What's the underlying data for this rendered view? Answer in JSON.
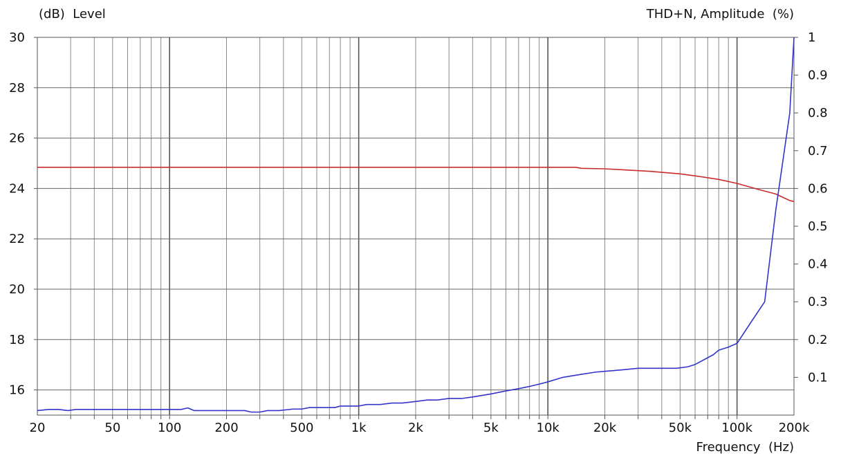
{
  "chart_data": {
    "type": "line",
    "left_axis_label": "(dB)  Level",
    "right_axis_label": "THD+N, Amplitude  (%)",
    "xlabel": "Frequency  (Hz)",
    "x_scale": "log",
    "xlim": [
      20,
      200000
    ],
    "ylim_left": [
      15,
      30
    ],
    "ylim_right": [
      0,
      1
    ],
    "grid": true,
    "x_major_ticks": [
      {
        "value": 20,
        "label": "20"
      },
      {
        "value": 50,
        "label": "50"
      },
      {
        "value": 100,
        "label": "100"
      },
      {
        "value": 200,
        "label": "200"
      },
      {
        "value": 500,
        "label": "500"
      },
      {
        "value": 1000,
        "label": "1k"
      },
      {
        "value": 2000,
        "label": "2k"
      },
      {
        "value": 5000,
        "label": "5k"
      },
      {
        "value": 10000,
        "label": "10k"
      },
      {
        "value": 20000,
        "label": "20k"
      },
      {
        "value": 50000,
        "label": "50k"
      },
      {
        "value": 100000,
        "label": "100k"
      },
      {
        "value": 200000,
        "label": "200k"
      }
    ],
    "y_left_ticks": [
      {
        "value": 16,
        "label": "16"
      },
      {
        "value": 18,
        "label": "18"
      },
      {
        "value": 20,
        "label": "20"
      },
      {
        "value": 22,
        "label": "22"
      },
      {
        "value": 24,
        "label": "24"
      },
      {
        "value": 26,
        "label": "26"
      },
      {
        "value": 28,
        "label": "28"
      },
      {
        "value": 30,
        "label": "30"
      }
    ],
    "y_right_ticks": [
      {
        "value": 0.1,
        "label": "0.1"
      },
      {
        "value": 0.2,
        "label": "0.2"
      },
      {
        "value": 0.3,
        "label": "0.3"
      },
      {
        "value": 0.4,
        "label": "0.4"
      },
      {
        "value": 0.5,
        "label": "0.5"
      },
      {
        "value": 0.6,
        "label": "0.6"
      },
      {
        "value": 0.7,
        "label": "0.7"
      },
      {
        "value": 0.8,
        "label": "0.8"
      },
      {
        "value": 0.9,
        "label": "0.9"
      },
      {
        "value": 1,
        "label": "1"
      }
    ],
    "series": [
      {
        "axis": "left",
        "color": "#cc2b2b",
        "x": [
          20,
          1000,
          10000,
          14000,
          15000,
          20000,
          25000,
          28000,
          35000,
          40000,
          50000,
          60000,
          80000,
          100000,
          130000,
          160000,
          190000,
          200000
        ],
        "y": [
          24.84,
          24.84,
          24.84,
          24.84,
          24.8,
          24.78,
          24.74,
          24.72,
          24.68,
          24.64,
          24.58,
          24.5,
          24.36,
          24.2,
          23.96,
          23.78,
          23.52,
          23.48
        ]
      },
      {
        "axis": "right",
        "color": "#3333cc",
        "x": [
          20,
          23,
          26,
          29,
          32,
          40,
          60,
          100,
          115,
          125,
          135,
          170,
          250,
          270,
          300,
          330,
          380,
          450,
          500,
          550,
          650,
          750,
          800,
          900,
          1000,
          1100,
          1300,
          1500,
          1700,
          2000,
          2300,
          2600,
          3000,
          3500,
          4000,
          5000,
          6000,
          7000,
          8000,
          9000,
          10000,
          12000,
          15000,
          18000,
          20000,
          25000,
          30000,
          40000,
          48000,
          55000,
          60000,
          75000,
          80000,
          90000,
          100000,
          120000,
          140000,
          160000,
          190000,
          200000
        ],
        "y": [
          0.012,
          0.015,
          0.015,
          0.012,
          0.015,
          0.015,
          0.015,
          0.015,
          0.015,
          0.019,
          0.012,
          0.012,
          0.012,
          0.008,
          0.008,
          0.012,
          0.012,
          0.016,
          0.016,
          0.02,
          0.02,
          0.02,
          0.024,
          0.024,
          0.024,
          0.028,
          0.028,
          0.032,
          0.032,
          0.036,
          0.04,
          0.04,
          0.044,
          0.044,
          0.048,
          0.056,
          0.064,
          0.07,
          0.076,
          0.082,
          0.088,
          0.1,
          0.108,
          0.114,
          0.116,
          0.12,
          0.124,
          0.124,
          0.124,
          0.128,
          0.134,
          0.16,
          0.172,
          0.18,
          0.19,
          0.25,
          0.3,
          0.54,
          0.8,
          1.0
        ]
      }
    ]
  }
}
